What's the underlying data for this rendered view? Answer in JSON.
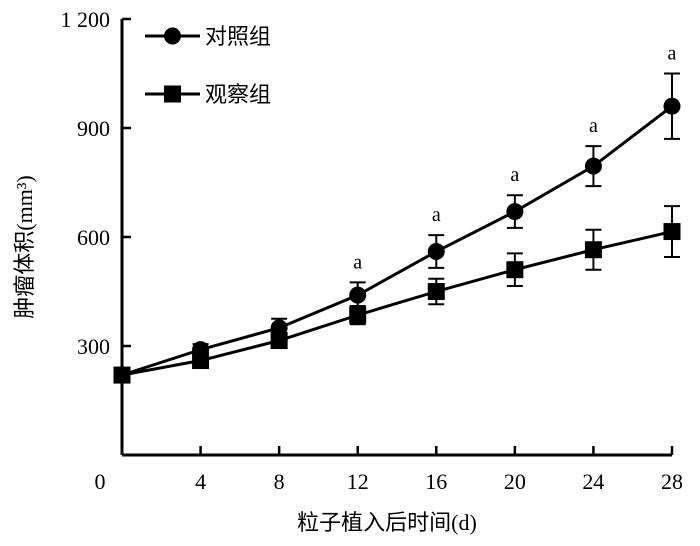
{
  "chart_data": {
    "type": "line",
    "x": [
      0,
      4,
      8,
      12,
      16,
      20,
      24,
      28
    ],
    "xlim": [
      0,
      28
    ],
    "ylim": [
      0,
      1200
    ],
    "xticks": [
      0,
      4,
      8,
      12,
      16,
      20,
      24,
      28
    ],
    "xtick_labels": [
      "0",
      "4",
      "8",
      "12",
      "16",
      "20",
      "24",
      "28"
    ],
    "yticks": [
      300,
      600,
      900,
      1200
    ],
    "ytick_labels": [
      "300",
      "600",
      "900",
      "1 200"
    ],
    "xlabel": "粒子植入后时间(d)",
    "ylabel": "肿瘤体积(mm³)",
    "legend_position": "top-left",
    "grid": false,
    "series": [
      {
        "name": "对照组",
        "marker": "circle",
        "values": [
          220,
          290,
          350,
          440,
          560,
          670,
          795,
          960
        ],
        "errors": [
          15,
          15,
          25,
          35,
          45,
          45,
          55,
          90
        ]
      },
      {
        "name": "观察组",
        "marker": "square",
        "values": [
          220,
          260,
          315,
          385,
          450,
          510,
          565,
          615
        ],
        "errors": [
          15,
          15,
          20,
          25,
          35,
          45,
          55,
          70
        ]
      }
    ],
    "annotations": [
      {
        "x": 12,
        "text": "a"
      },
      {
        "x": 16,
        "text": "a"
      },
      {
        "x": 20,
        "text": "a"
      },
      {
        "x": 24,
        "text": "a"
      },
      {
        "x": 28,
        "text": "a"
      }
    ]
  }
}
